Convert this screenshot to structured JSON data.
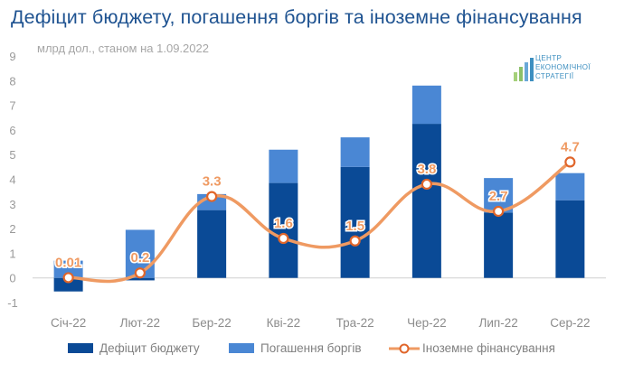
{
  "title": "Дефіцит бюджету, погашення боргів та іноземне фінансування",
  "subtitle": "млрд дол., станом на 1.09.2022",
  "logo": {
    "lines": [
      "ЦЕНТР",
      "ЕКОНОМІЧНОЇ",
      "СТРАТЕГІЇ"
    ]
  },
  "colors": {
    "deficit": "#0a4a96",
    "debt": "#4a87d4",
    "financing": "#ef9a62",
    "title": "#1f5391"
  },
  "chart_data": {
    "type": "bar",
    "stacked": true,
    "categories": [
      "Січ-22",
      "Лют-22",
      "Бер-22",
      "Кві-22",
      "Тра-22",
      "Чер-22",
      "Лип-22",
      "Сер-22"
    ],
    "series": [
      {
        "name": "Дефіцит бюджету",
        "type": "bar",
        "values": [
          -0.55,
          -0.1,
          2.75,
          3.85,
          4.5,
          6.25,
          2.65,
          3.15
        ]
      },
      {
        "name": "Погашення боргів",
        "type": "bar",
        "values": [
          0.7,
          1.95,
          0.65,
          1.35,
          1.2,
          1.55,
          1.4,
          1.1
        ]
      },
      {
        "name": "Іноземне фінансування",
        "type": "line",
        "smooth": true,
        "values": [
          0.01,
          0.2,
          3.3,
          1.6,
          1.5,
          3.8,
          2.7,
          4.7
        ],
        "labels": [
          "0.01",
          "0.2",
          "3.3",
          "1.6",
          "1.5",
          "3.8",
          "2.7",
          "4.7"
        ]
      }
    ],
    "ylim": [
      -1,
      9
    ],
    "yticks": [
      "-1",
      "0",
      "1",
      "2",
      "3",
      "4",
      "5",
      "6",
      "7",
      "8",
      "9"
    ],
    "grid": false,
    "legend": "bottom"
  }
}
